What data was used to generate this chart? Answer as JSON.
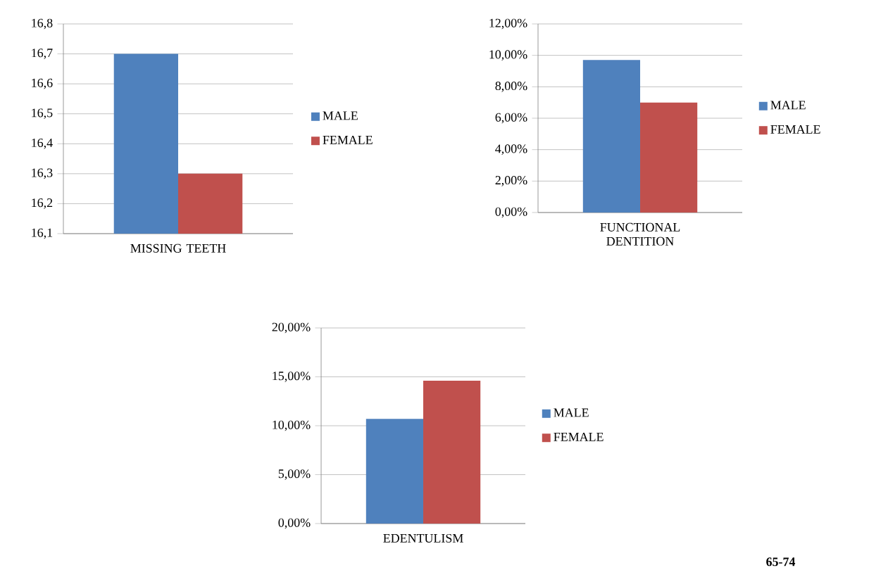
{
  "chart_data": [
    {
      "type": "bar",
      "categories": [
        "MISSING TEETH"
      ],
      "series": [
        {
          "name": "MALE",
          "color": "#4f81bd",
          "values": [
            16.7
          ]
        },
        {
          "name": "FEMALE",
          "color": "#c0504d",
          "values": [
            16.3
          ]
        }
      ],
      "ylim": [
        16.1,
        16.8
      ],
      "yticks": [
        {
          "value": 16.1,
          "label": "16,1"
        },
        {
          "value": 16.2,
          "label": "16,2"
        },
        {
          "value": 16.3,
          "label": "16,3"
        },
        {
          "value": 16.4,
          "label": "16,4"
        },
        {
          "value": 16.5,
          "label": "16,5"
        },
        {
          "value": 16.6,
          "label": "16,6"
        },
        {
          "value": 16.7,
          "label": "16,7"
        },
        {
          "value": 16.8,
          "label": "16,8"
        }
      ],
      "grid": "y",
      "legend": "right"
    },
    {
      "type": "bar",
      "categories": [
        "FUNCTIONAL DENTITION"
      ],
      "series": [
        {
          "name": "MALE",
          "color": "#4f81bd",
          "values": [
            9.7
          ]
        },
        {
          "name": "FEMALE",
          "color": "#c0504d",
          "values": [
            7.0
          ]
        }
      ],
      "ylim": [
        0,
        12
      ],
      "yticks": [
        {
          "value": 0,
          "label": "0,00%"
        },
        {
          "value": 2,
          "label": "2,00%"
        },
        {
          "value": 4,
          "label": "4,00%"
        },
        {
          "value": 6,
          "label": "6,00%"
        },
        {
          "value": 8,
          "label": "8,00%"
        },
        {
          "value": 10,
          "label": "10,00%"
        },
        {
          "value": 12,
          "label": "12,00%"
        }
      ],
      "grid": "y",
      "legend": "right"
    },
    {
      "type": "bar",
      "categories": [
        "EDENTULISM"
      ],
      "series": [
        {
          "name": "MALE",
          "color": "#4f81bd",
          "values": [
            10.7
          ]
        },
        {
          "name": "FEMALE",
          "color": "#c0504d",
          "values": [
            14.6
          ]
        }
      ],
      "ylim": [
        0,
        20
      ],
      "yticks": [
        {
          "value": 0,
          "label": "0,00%"
        },
        {
          "value": 5,
          "label": "5,00%"
        },
        {
          "value": 10,
          "label": "10,00%"
        },
        {
          "value": 15,
          "label": "15,00%"
        },
        {
          "value": 20,
          "label": "20,00%"
        }
      ],
      "grid": "y",
      "legend": "right",
      "annotations": [
        "65-74"
      ]
    }
  ]
}
